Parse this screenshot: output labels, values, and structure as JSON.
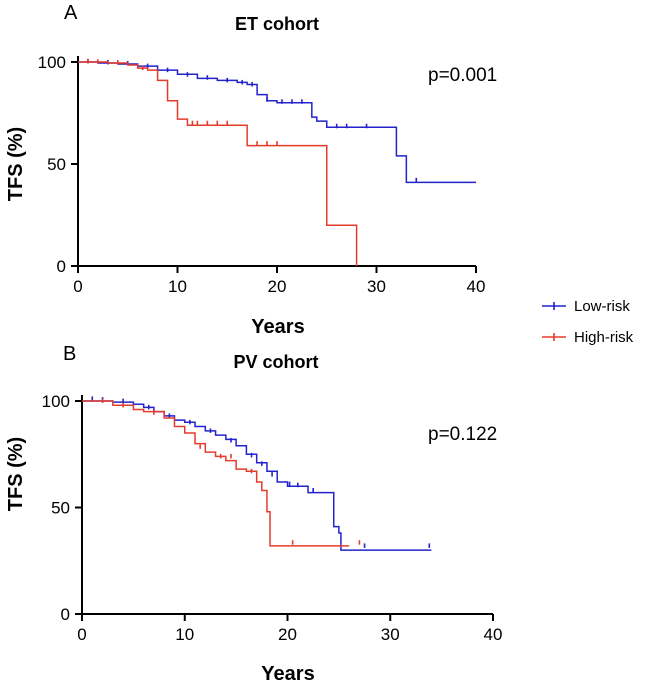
{
  "chart_data": [
    {
      "type": "line",
      "panel": "A",
      "title": "ET cohort",
      "xlabel": "Years",
      "ylabel": "TFS (%)",
      "xlim": [
        0,
        40
      ],
      "ylim": [
        0,
        100
      ],
      "xticks": [
        0,
        10,
        20,
        30,
        40
      ],
      "yticks": [
        0,
        50,
        100
      ],
      "annotation": "p=0.001",
      "series": [
        {
          "name": "Low-risk",
          "color": "#2323cc",
          "steps": [
            [
              0,
              100
            ],
            [
              2,
              99.5
            ],
            [
              4,
              99
            ],
            [
              6,
              98
            ],
            [
              8,
              96
            ],
            [
              10,
              94
            ],
            [
              12,
              92
            ],
            [
              14,
              91
            ],
            [
              16,
              90
            ],
            [
              17,
              89
            ],
            [
              18,
              84
            ],
            [
              19,
              81
            ],
            [
              20,
              80
            ],
            [
              23,
              80
            ],
            [
              23.5,
              73
            ],
            [
              24,
              71
            ],
            [
              25,
              68
            ],
            [
              32,
              68
            ],
            [
              32,
              54
            ],
            [
              33,
              54
            ],
            [
              33,
              41
            ],
            [
              40,
              41
            ]
          ],
          "censored": [
            [
              1,
              99.8
            ],
            [
              3,
              99.3
            ],
            [
              5,
              98.8
            ],
            [
              7,
              97.5
            ],
            [
              9,
              95.5
            ],
            [
              11,
              93.3
            ],
            [
              13,
              91.8
            ],
            [
              15,
              90.5
            ],
            [
              16.5,
              89.5
            ],
            [
              17.5,
              88.5
            ],
            [
              19,
              81
            ],
            [
              20.5,
              80
            ],
            [
              21.5,
              80
            ],
            [
              22.5,
              80
            ],
            [
              26,
              68
            ],
            [
              27,
              68
            ],
            [
              29,
              68
            ],
            [
              34,
              41.5
            ]
          ]
        },
        {
          "name": "High-risk",
          "color": "#e53b2c",
          "steps": [
            [
              0,
              100
            ],
            [
              3,
              99.5
            ],
            [
              5,
              98.5
            ],
            [
              6,
              97
            ],
            [
              7,
              96
            ],
            [
              8,
              91
            ],
            [
              9,
              81
            ],
            [
              10,
              72
            ],
            [
              11,
              69
            ],
            [
              17,
              69
            ],
            [
              17,
              59
            ],
            [
              25,
              59
            ],
            [
              25,
              20
            ],
            [
              28,
              20
            ],
            [
              28,
              0
            ]
          ],
          "censored": [
            [
              1,
              99.8
            ],
            [
              2,
              99.6
            ],
            [
              4,
              99.2
            ],
            [
              6.5,
              96.5
            ],
            [
              11.5,
              69.5
            ],
            [
              12,
              69.5
            ],
            [
              13,
              69.5
            ],
            [
              14,
              69.5
            ],
            [
              15,
              69.5
            ],
            [
              18,
              59.5
            ],
            [
              19,
              59.5
            ],
            [
              20,
              59.5
            ]
          ]
        }
      ]
    },
    {
      "type": "line",
      "panel": "B",
      "title": "PV cohort",
      "xlabel": "Years",
      "ylabel": "TFS (%)",
      "xlim": [
        0,
        40
      ],
      "ylim": [
        0,
        100
      ],
      "xticks": [
        0,
        10,
        20,
        30,
        40
      ],
      "yticks": [
        0,
        50,
        100
      ],
      "annotation": "p=0.122",
      "series": [
        {
          "name": "Low-risk",
          "color": "#2323cc",
          "steps": [
            [
              0,
              100
            ],
            [
              3,
              99.5
            ],
            [
              5,
              98.5
            ],
            [
              6,
              97
            ],
            [
              7,
              95
            ],
            [
              8,
              93
            ],
            [
              9,
              91
            ],
            [
              10,
              90
            ],
            [
              11,
              88
            ],
            [
              12,
              86
            ],
            [
              13,
              84
            ],
            [
              14,
              82
            ],
            [
              15,
              79
            ],
            [
              16,
              75
            ],
            [
              17,
              71
            ],
            [
              18,
              67
            ],
            [
              19,
              62
            ],
            [
              20,
              60
            ],
            [
              21,
              60
            ],
            [
              22,
              57
            ],
            [
              23,
              57
            ],
            [
              24,
              57
            ],
            [
              24.5,
              41
            ],
            [
              25,
              38
            ],
            [
              25.2,
              30
            ],
            [
              34,
              30
            ]
          ],
          "censored": [
            [
              1,
              100.5
            ],
            [
              2,
              100.2
            ],
            [
              4,
              99.5
            ],
            [
              6.5,
              96.5
            ],
            [
              8.5,
              92.5
            ],
            [
              10.5,
              89.5
            ],
            [
              12.5,
              85.5
            ],
            [
              14.5,
              81
            ],
            [
              16.5,
              74
            ],
            [
              17.5,
              70
            ],
            [
              18.5,
              65
            ],
            [
              20.2,
              60.5
            ],
            [
              21,
              60
            ],
            [
              22.5,
              57.5
            ],
            [
              27.5,
              31.5
            ],
            [
              33.8,
              31.5
            ]
          ]
        },
        {
          "name": "High-risk",
          "color": "#e53b2c",
          "steps": [
            [
              0,
              100
            ],
            [
              3,
              98
            ],
            [
              5,
              96
            ],
            [
              6,
              95
            ],
            [
              8,
              92
            ],
            [
              9,
              88
            ],
            [
              10,
              85
            ],
            [
              11,
              80
            ],
            [
              12,
              76
            ],
            [
              13,
              74
            ],
            [
              14,
              72
            ],
            [
              15,
              68
            ],
            [
              16,
              67
            ],
            [
              17,
              62
            ],
            [
              17.5,
              58
            ],
            [
              18,
              48
            ],
            [
              18.3,
              32
            ],
            [
              26,
              32
            ]
          ],
          "censored": [
            [
              2,
              99.5
            ],
            [
              4,
              97.5
            ],
            [
              7,
              94
            ],
            [
              11.5,
              78
            ],
            [
              13.5,
              73.5
            ],
            [
              14.5,
              73.5
            ],
            [
              16.5,
              66.5
            ],
            [
              20.5,
              33
            ],
            [
              27,
              33
            ]
          ]
        }
      ]
    }
  ],
  "legend": {
    "items": [
      {
        "label": "Low-risk",
        "color": "#2323cc"
      },
      {
        "label": "High-risk",
        "color": "#e53b2c"
      }
    ]
  }
}
